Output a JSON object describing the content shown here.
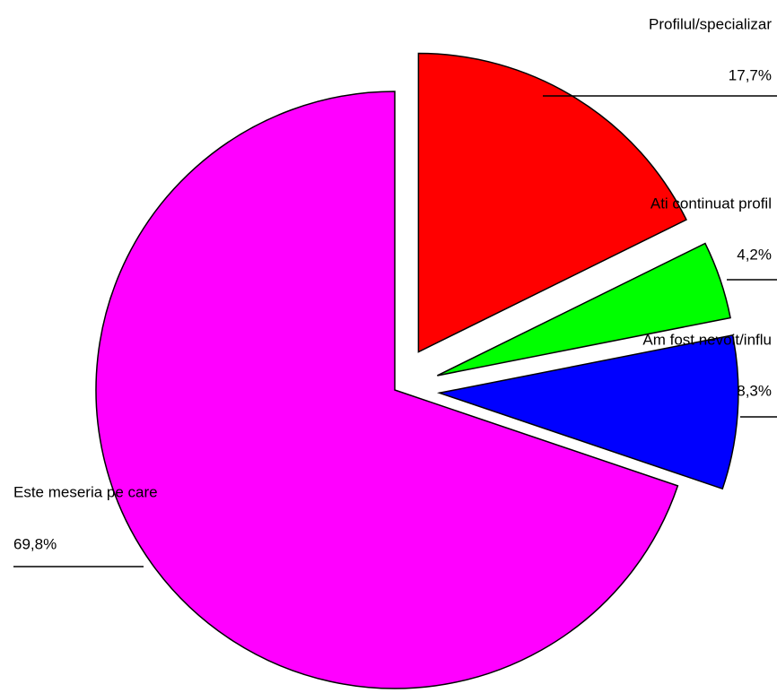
{
  "chart_data": {
    "type": "pie",
    "categories": [
      "Profilul/specializar",
      "Ati continuat profil",
      "Am fost nevoit/influ",
      "Este meseria pe care"
    ],
    "values": [
      17.7,
      4.2,
      8.3,
      69.8
    ],
    "value_labels": [
      "17,7%",
      "4,2%",
      "8,3%",
      "69,8%"
    ],
    "colors": [
      "#ff0000",
      "#00ff00",
      "#0000ff",
      "#ff00ff"
    ],
    "exploded": [
      true,
      true,
      true,
      false
    ]
  }
}
